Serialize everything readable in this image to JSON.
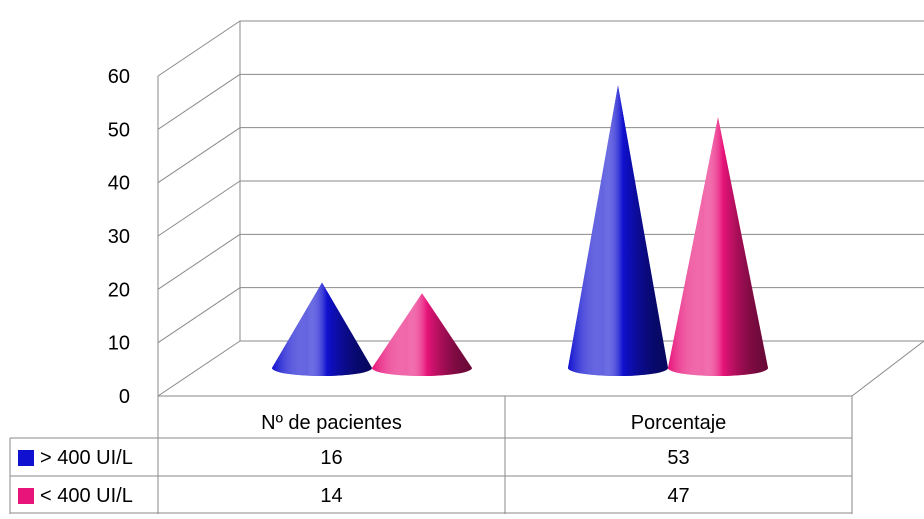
{
  "chart_data": {
    "type": "bar",
    "style": "3d-cone",
    "categories": [
      "Nº de pacientes",
      "Porcentaje"
    ],
    "series": [
      {
        "name": "> 400 UI/L",
        "values": [
          16,
          53
        ],
        "color": "#1010d0"
      },
      {
        "name": "< 400 UI/L",
        "values": [
          14,
          47
        ],
        "color": "#e8147a"
      }
    ],
    "y_ticks": [
      "0",
      "10",
      "20",
      "30",
      "40",
      "50",
      "60"
    ],
    "ylim": [
      0,
      60
    ],
    "grid": true,
    "legend": "data-table-left"
  }
}
